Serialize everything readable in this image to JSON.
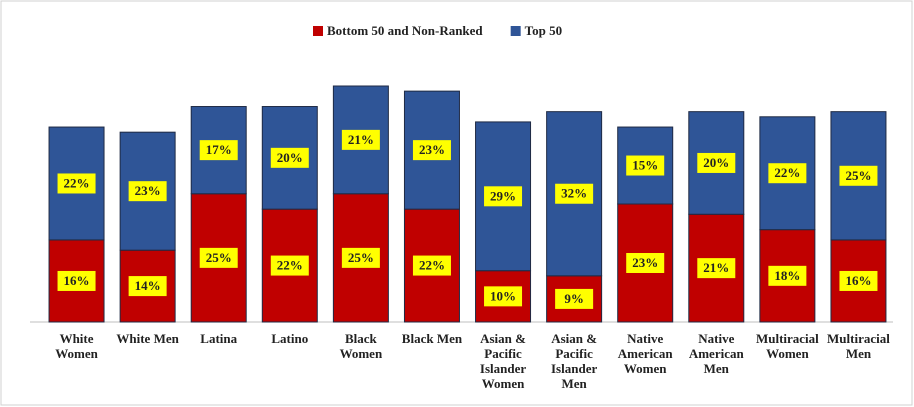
{
  "chart_data": {
    "type": "stacked_bar",
    "categories": [
      "White\nWomen",
      "White Men",
      "Latina",
      "Latino",
      "Black\nWomen",
      "Black Men",
      "Asian &\nPacific\nIslander\nWomen",
      "Asian &\nPacific\nIslander\nMen",
      "Native\nAmerican\nWomen",
      "Native\nAmerican\nMen",
      "Multiracial\nWomen",
      "Multiracial\nMen"
    ],
    "series": [
      {
        "name": "Bottom 50 and Non-Ranked",
        "color": "#c00000",
        "values": [
          16,
          14,
          25,
          22,
          25,
          22,
          10,
          9,
          23,
          21,
          18,
          16
        ],
        "value_labels": [
          "16%",
          "14%",
          "25%",
          "22%",
          "25%",
          "22%",
          "10%",
          "9%",
          "23%",
          "21%",
          "18%",
          "16%"
        ]
      },
      {
        "name": "Top 50",
        "color": "#2f5597",
        "values": [
          22,
          23,
          17,
          20,
          21,
          23,
          29,
          32,
          15,
          20,
          22,
          25
        ],
        "value_labels": [
          "22%",
          "23%",
          "17%",
          "20%",
          "21%",
          "23%",
          "29%",
          "32%",
          "15%",
          "20%",
          "22%",
          "25%"
        ]
      }
    ],
    "legend": "top"
  }
}
